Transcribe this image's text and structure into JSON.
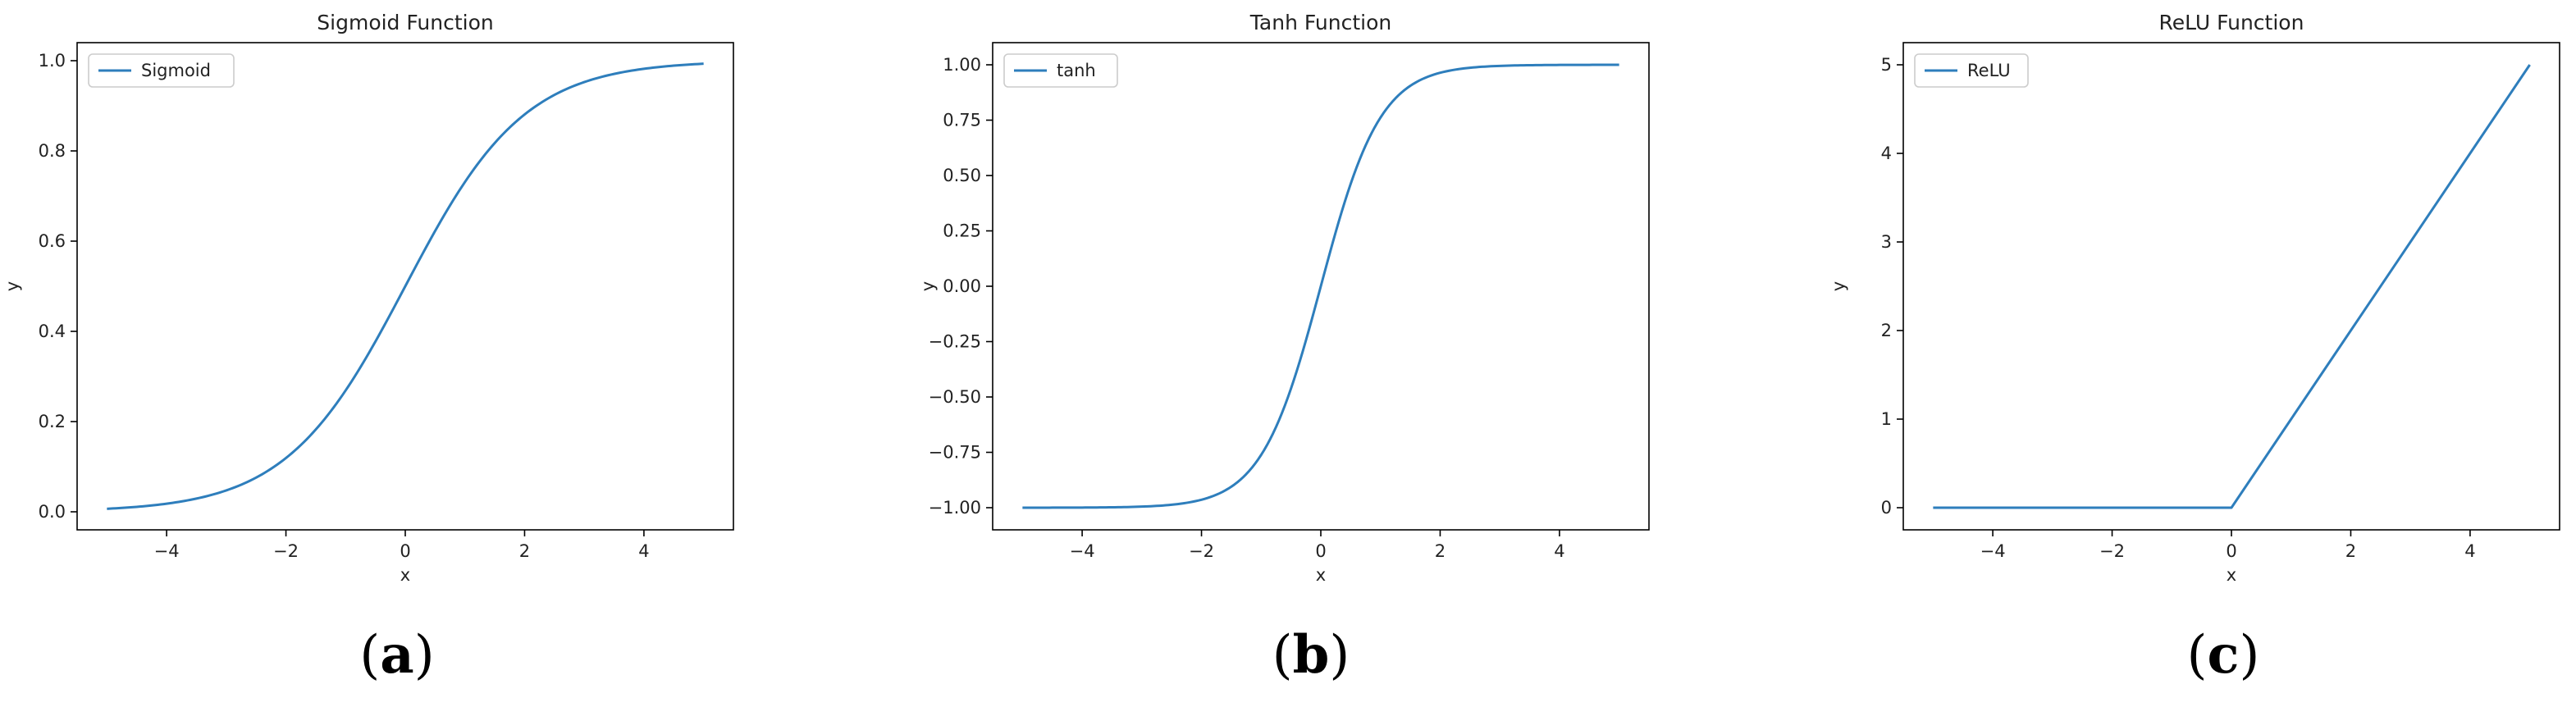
{
  "style": {
    "line_color": "#2e7ebc",
    "axis_color": "#000000",
    "legend_border": "#cccccc"
  },
  "chart_data": [
    {
      "type": "line",
      "title": "Sigmoid Function",
      "xlabel": "x",
      "ylabel": "y",
      "panel": {
        "open": "(",
        "letter": "a",
        "close": ")"
      },
      "xlim": [
        -5.5,
        5.5
      ],
      "ylim": [
        -0.04,
        1.04
      ],
      "xticks": [
        -4,
        -2,
        0,
        2,
        4
      ],
      "xtick_labels": [
        "−4",
        "−2",
        "0",
        "2",
        "4"
      ],
      "yticks": [
        0.0,
        0.2,
        0.4,
        0.6,
        0.8,
        1.0
      ],
      "ytick_labels": [
        "0.0",
        "0.2",
        "0.4",
        "0.6",
        "0.8",
        "1.0"
      ],
      "legend": {
        "position": "upper-left",
        "entries": [
          "Sigmoid"
        ]
      },
      "series": [
        {
          "name": "Sigmoid",
          "x": [
            -5,
            -4.5,
            -4,
            -3.5,
            -3,
            -2.5,
            -2,
            -1.5,
            -1,
            -0.5,
            0,
            0.5,
            1,
            1.5,
            2,
            2.5,
            3,
            3.5,
            4,
            4.5,
            5
          ],
          "y": [
            0.0067,
            0.011,
            0.018,
            0.0293,
            0.0474,
            0.0759,
            0.1192,
            0.1824,
            0.2689,
            0.3775,
            0.5,
            0.6225,
            0.7311,
            0.8176,
            0.8808,
            0.9241,
            0.9526,
            0.9707,
            0.982,
            0.989,
            0.9933
          ]
        }
      ]
    },
    {
      "type": "line",
      "title": "Tanh Function",
      "xlabel": "x",
      "ylabel": "y",
      "panel": {
        "open": "(",
        "letter": "b",
        "close": ")"
      },
      "xlim": [
        -5.5,
        5.5
      ],
      "ylim": [
        -1.1,
        1.1
      ],
      "xticks": [
        -4,
        -2,
        0,
        2,
        4
      ],
      "xtick_labels": [
        "−4",
        "−2",
        "0",
        "2",
        "4"
      ],
      "yticks": [
        -1.0,
        -0.75,
        -0.5,
        -0.25,
        0.0,
        0.25,
        0.5,
        0.75,
        1.0
      ],
      "ytick_labels": [
        "−1.00",
        "−0.75",
        "−0.50",
        "−0.25",
        "0.00",
        "0.25",
        "0.50",
        "0.75",
        "1.00"
      ],
      "legend": {
        "position": "upper-left",
        "entries": [
          "tanh"
        ]
      },
      "series": [
        {
          "name": "tanh",
          "x": [
            -5,
            -4.5,
            -4,
            -3.5,
            -3,
            -2.5,
            -2,
            -1.5,
            -1,
            -0.5,
            0,
            0.5,
            1,
            1.5,
            2,
            2.5,
            3,
            3.5,
            4,
            4.5,
            5
          ],
          "y": [
            -0.9999,
            -0.9998,
            -0.9993,
            -0.9982,
            -0.9951,
            -0.9866,
            -0.964,
            -0.9051,
            -0.7616,
            -0.4621,
            0.0,
            0.4621,
            0.7616,
            0.9051,
            0.964,
            0.9866,
            0.9951,
            0.9982,
            0.9993,
            0.9998,
            0.9999
          ]
        }
      ]
    },
    {
      "type": "line",
      "title": "ReLU Function",
      "xlabel": "x",
      "ylabel": "y",
      "panel": {
        "open": "(",
        "letter": "c",
        "close": ")"
      },
      "xlim": [
        -5.5,
        5.5
      ],
      "ylim": [
        -0.25,
        5.25
      ],
      "xticks": [
        -4,
        -2,
        0,
        2,
        4
      ],
      "xtick_labels": [
        "−4",
        "−2",
        "0",
        "2",
        "4"
      ],
      "yticks": [
        0,
        1,
        2,
        3,
        4,
        5
      ],
      "ytick_labels": [
        "0",
        "1",
        "2",
        "3",
        "4",
        "5"
      ],
      "legend": {
        "position": "upper-left",
        "entries": [
          "ReLU"
        ]
      },
      "series": [
        {
          "name": "ReLU",
          "x": [
            -5,
            -4,
            -3,
            -2,
            -1,
            0,
            1,
            2,
            3,
            4,
            5
          ],
          "y": [
            0,
            0,
            0,
            0,
            0,
            0,
            1,
            2,
            3,
            4,
            5
          ]
        }
      ]
    }
  ]
}
